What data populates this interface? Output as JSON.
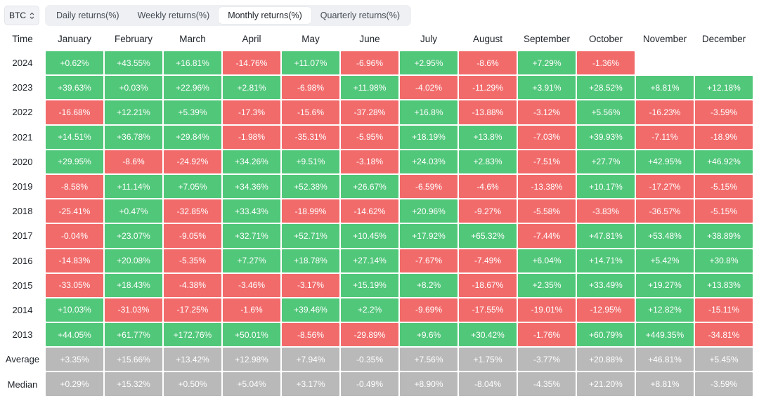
{
  "asset_selector": {
    "value": "BTC"
  },
  "tabs": [
    {
      "label": "Daily returns(%)",
      "active": false
    },
    {
      "label": "Weekly returns(%)",
      "active": false
    },
    {
      "label": "Monthly returns(%)",
      "active": true
    },
    {
      "label": "Quarterly returns(%)",
      "active": false
    }
  ],
  "colors": {
    "positive": "#51c77a",
    "negative": "#f26b6b",
    "statistic": "#b9b9b9"
  },
  "table": {
    "time_header": "Time",
    "months": [
      "January",
      "February",
      "March",
      "April",
      "May",
      "June",
      "July",
      "August",
      "September",
      "October",
      "November",
      "December"
    ],
    "rows": [
      {
        "year": "2024",
        "values": [
          "+0.62%",
          "+43.55%",
          "+16.81%",
          "-14.76%",
          "+11.07%",
          "-6.96%",
          "+2.95%",
          "-8.6%",
          "+7.29%",
          "-1.36%",
          "",
          ""
        ]
      },
      {
        "year": "2023",
        "values": [
          "+39.63%",
          "+0.03%",
          "+22.96%",
          "+2.81%",
          "-6.98%",
          "+11.98%",
          "-4.02%",
          "-11.29%",
          "+3.91%",
          "+28.52%",
          "+8.81%",
          "+12.18%"
        ]
      },
      {
        "year": "2022",
        "values": [
          "-16.68%",
          "+12.21%",
          "+5.39%",
          "-17.3%",
          "-15.6%",
          "-37.28%",
          "+16.8%",
          "-13.88%",
          "-3.12%",
          "+5.56%",
          "-16.23%",
          "-3.59%"
        ]
      },
      {
        "year": "2021",
        "values": [
          "+14.51%",
          "+36.78%",
          "+29.84%",
          "-1.98%",
          "-35.31%",
          "-5.95%",
          "+18.19%",
          "+13.8%",
          "-7.03%",
          "+39.93%",
          "-7.11%",
          "-18.9%"
        ]
      },
      {
        "year": "2020",
        "values": [
          "+29.95%",
          "-8.6%",
          "-24.92%",
          "+34.26%",
          "+9.51%",
          "-3.18%",
          "+24.03%",
          "+2.83%",
          "-7.51%",
          "+27.7%",
          "+42.95%",
          "+46.92%"
        ]
      },
      {
        "year": "2019",
        "values": [
          "-8.58%",
          "+11.14%",
          "+7.05%",
          "+34.36%",
          "+52.38%",
          "+26.67%",
          "-6.59%",
          "-4.6%",
          "-13.38%",
          "+10.17%",
          "-17.27%",
          "-5.15%"
        ]
      },
      {
        "year": "2018",
        "values": [
          "-25.41%",
          "+0.47%",
          "-32.85%",
          "+33.43%",
          "-18.99%",
          "-14.62%",
          "+20.96%",
          "-9.27%",
          "-5.58%",
          "-3.83%",
          "-36.57%",
          "-5.15%"
        ]
      },
      {
        "year": "2017",
        "values": [
          "-0.04%",
          "+23.07%",
          "-9.05%",
          "+32.71%",
          "+52.71%",
          "+10.45%",
          "+17.92%",
          "+65.32%",
          "-7.44%",
          "+47.81%",
          "+53.48%",
          "+38.89%"
        ]
      },
      {
        "year": "2016",
        "values": [
          "-14.83%",
          "+20.08%",
          "-5.35%",
          "+7.27%",
          "+18.78%",
          "+27.14%",
          "-7.67%",
          "-7.49%",
          "+6.04%",
          "+14.71%",
          "+5.42%",
          "+30.8%"
        ]
      },
      {
        "year": "2015",
        "values": [
          "-33.05%",
          "+18.43%",
          "-4.38%",
          "-3.46%",
          "-3.17%",
          "+15.19%",
          "+8.2%",
          "-18.67%",
          "+2.35%",
          "+33.49%",
          "+19.27%",
          "+13.83%"
        ]
      },
      {
        "year": "2014",
        "values": [
          "+10.03%",
          "-31.03%",
          "-17.25%",
          "-1.6%",
          "+39.46%",
          "+2.2%",
          "-9.69%",
          "-17.55%",
          "-19.01%",
          "-12.95%",
          "+12.82%",
          "-15.11%"
        ]
      },
      {
        "year": "2013",
        "values": [
          "+44.05%",
          "+61.77%",
          "+172.76%",
          "+50.01%",
          "-8.56%",
          "-29.89%",
          "+9.6%",
          "+30.42%",
          "-1.76%",
          "+60.79%",
          "+449.35%",
          "-34.81%"
        ]
      }
    ],
    "stats": [
      {
        "label": "Average",
        "values": [
          "+3.35%",
          "+15.66%",
          "+13.42%",
          "+12.98%",
          "+7.94%",
          "-0.35%",
          "+7.56%",
          "+1.75%",
          "-3.77%",
          "+20.88%",
          "+46.81%",
          "+5.45%"
        ]
      },
      {
        "label": "Median",
        "values": [
          "+0.29%",
          "+15.32%",
          "+0.50%",
          "+5.04%",
          "+3.17%",
          "-0.49%",
          "+8.90%",
          "-8.04%",
          "-4.35%",
          "+21.20%",
          "+8.81%",
          "-3.59%"
        ]
      }
    ]
  }
}
